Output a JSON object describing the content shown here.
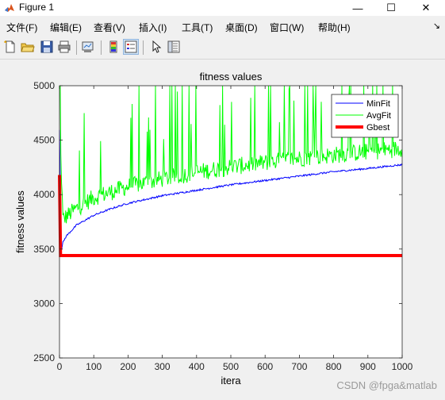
{
  "window": {
    "title": "Figure 1",
    "controls": {
      "minimize": "—",
      "maximize": "☐",
      "close": "✕"
    }
  },
  "menu": {
    "items": [
      "文件(F)",
      "编辑(E)",
      "查看(V)",
      "插入(I)",
      "工具(T)",
      "桌面(D)",
      "窗口(W)",
      "帮助(H)"
    ],
    "dock_arrow": "↘"
  },
  "toolbar": {
    "buttons": [
      "new-figure-icon",
      "open-file-icon",
      "save-icon",
      "print-icon",
      "link-plot-icon",
      "colorbar-icon",
      "legend-icon",
      "pointer-icon",
      "property-inspector-icon"
    ]
  },
  "watermark": "CSDN @fpga&matlab",
  "colors": {
    "minfit": "#0000ff",
    "avgfit": "#00ff00",
    "gbest": "#ff0000"
  },
  "chart_data": {
    "type": "line",
    "title": "fitness values",
    "xlabel": "itera",
    "ylabel": "fitness values",
    "xlim": [
      0,
      1000
    ],
    "ylim": [
      2500,
      5000
    ],
    "xticks": [
      0,
      100,
      200,
      300,
      400,
      500,
      600,
      700,
      800,
      900,
      1000
    ],
    "yticks": [
      2500,
      3000,
      3500,
      4000,
      4500,
      5000
    ],
    "legend_position": "top-right",
    "series": [
      {
        "name": "MinFit",
        "color": "#0000ff",
        "x": [
          0,
          5,
          10,
          20,
          50,
          100,
          150,
          200,
          300,
          400,
          500,
          600,
          700,
          800,
          900,
          1000
        ],
        "y": [
          4600,
          3480,
          3560,
          3620,
          3720,
          3810,
          3870,
          3920,
          3990,
          4040,
          4090,
          4130,
          4170,
          4210,
          4240,
          4275
        ]
      },
      {
        "name": "AvgFit",
        "color": "#00ff00",
        "x": [
          0,
          10,
          50,
          100,
          200,
          300,
          400,
          500,
          600,
          700,
          800,
          900,
          1000
        ],
        "y": [
          4700,
          3750,
          3850,
          3950,
          4050,
          4120,
          4180,
          4230,
          4270,
          4310,
          4340,
          4370,
          4400
        ]
      },
      {
        "name": "Gbest",
        "color": "#ff0000",
        "x": [
          0,
          3,
          5,
          1000
        ],
        "y": [
          4180,
          3440,
          3440,
          3440
        ]
      }
    ]
  }
}
